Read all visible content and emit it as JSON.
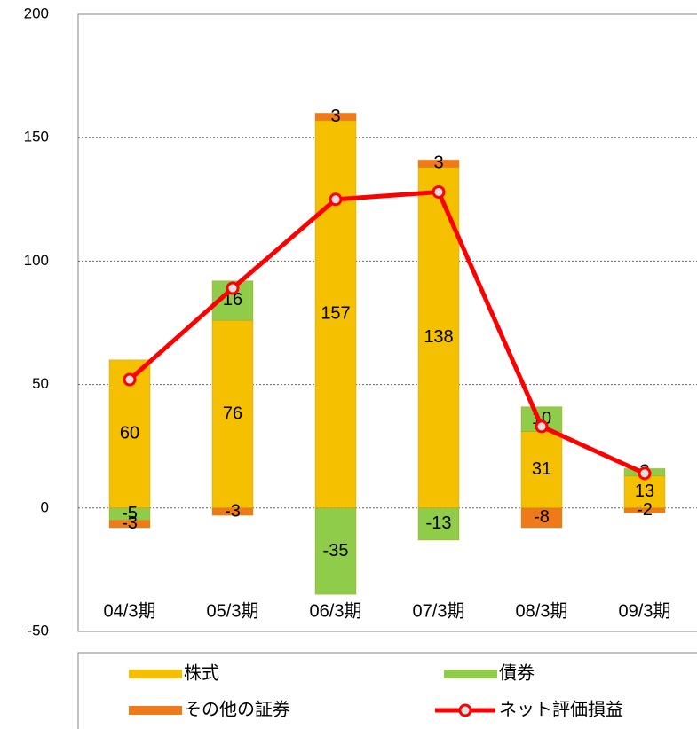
{
  "chart_data": {
    "type": "bar",
    "categories": [
      "04/3期",
      "05/3期",
      "06/3期",
      "07/3期",
      "08/3期",
      "09/3期"
    ],
    "series": [
      {
        "name": "株式",
        "color": "#f5c000",
        "values": [
          60,
          76,
          157,
          138,
          31,
          13
        ]
      },
      {
        "name": "債券",
        "color": "#8fcc4a",
        "values": [
          -5,
          16,
          -35,
          -13,
          10,
          3
        ]
      },
      {
        "name": "その他の証券",
        "color": "#f07a1a",
        "values": [
          -3,
          -3,
          3,
          3,
          -8,
          -2
        ]
      },
      {
        "name": "ネット評価損益",
        "type": "line",
        "color": "#ff0000",
        "values": [
          52,
          89,
          125,
          128,
          33,
          14
        ]
      }
    ],
    "ylim": [
      -50,
      200
    ],
    "yticks": [
      -50,
      0,
      50,
      100,
      150,
      200
    ],
    "grid": true,
    "stacked": true
  }
}
